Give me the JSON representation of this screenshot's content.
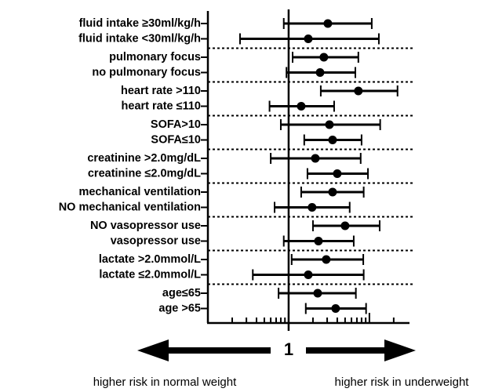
{
  "chart_data": {
    "type": "forest",
    "categories": [
      "fluid intake ≥30ml/kg/h",
      "fluid intake <30ml/kg/h",
      "pulmonary focus",
      "no pulmonary focus",
      "heart rate >110",
      "heart rate ≤110",
      "SOFA>10",
      "SOFA≤10",
      "creatinine >2.0mg/dL",
      "creatinine ≤2.0mg/dL",
      "mechanical ventilation",
      "NO mechanical ventilation",
      "NO vasopressor use",
      "vasopressor use",
      "lactate >2.0mmol/L",
      "lactate ≤2.0mmol/L",
      "age≤65",
      "age >65"
    ],
    "values": [
      3.06,
      1.75,
      2.73,
      2.45,
      7.3,
      1.43,
      3.2,
      3.5,
      2.14,
      4.0,
      3.5,
      1.95,
      5.0,
      2.34,
      2.92,
      1.75,
      2.29,
      3.82
    ],
    "lower": [
      0.87,
      0.25,
      1.12,
      0.94,
      2.5,
      0.58,
      0.8,
      1.56,
      0.6,
      1.71,
      1.43,
      0.67,
      2.0,
      0.87,
      1.09,
      0.36,
      0.75,
      1.63
    ],
    "upper": [
      10.7,
      13.1,
      7.3,
      6.7,
      22.3,
      3.66,
      13.6,
      8.0,
      7.8,
      9.6,
      8.5,
      5.7,
      13.4,
      6.4,
      8.4,
      8.5,
      6.8,
      9.1
    ],
    "x_log_scale": true,
    "xlim": [
      0.1,
      30
    ],
    "xticks": [
      1
    ],
    "tick_marks": [
      0.1,
      0.2,
      0.3,
      0.4,
      0.5,
      0.6,
      0.7,
      0.8,
      0.9,
      1,
      2,
      3,
      4,
      5,
      6,
      7,
      8,
      9,
      10,
      20
    ],
    "left_note": "higher risk in normal weight",
    "right_note": "higher risk in underweight"
  }
}
